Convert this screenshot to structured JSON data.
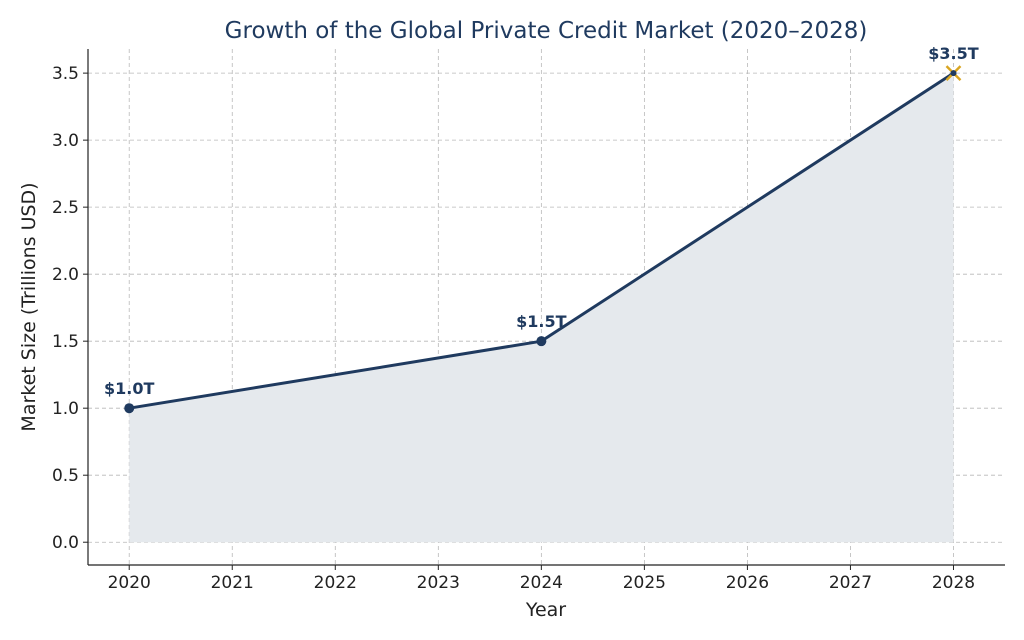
{
  "chart_data": {
    "type": "line",
    "title": "Growth of the Global Private Credit Market (2020–2028)",
    "xlabel": "Year",
    "ylabel": "Market Size (Trillions USD)",
    "x": [
      2020,
      2024,
      2028
    ],
    "series": [
      {
        "values": [
          1.0,
          1.5,
          3.5
        ]
      }
    ],
    "xlim": [
      2019.6,
      2028.5
    ],
    "ylim": [
      -0.17,
      3.68
    ],
    "x_ticks": [
      "2020",
      "2021",
      "2022",
      "2023",
      "2024",
      "2025",
      "2026",
      "2027",
      "2028"
    ],
    "y_ticks": [
      "0.0",
      "0.5",
      "1.0",
      "1.5",
      "2.0",
      "2.5",
      "3.0",
      "3.5"
    ],
    "data_labels": [
      "$1.0T",
      "$1.5T",
      "$3.5T"
    ],
    "area_fill": true,
    "grid": true,
    "highlight_last_point": true
  },
  "colors": {
    "line": "#1f3a5f",
    "fill": "#e5e9ed",
    "grid": "#b8b8b8",
    "highlight": "#d9a520",
    "title": "#1f3a5f"
  }
}
